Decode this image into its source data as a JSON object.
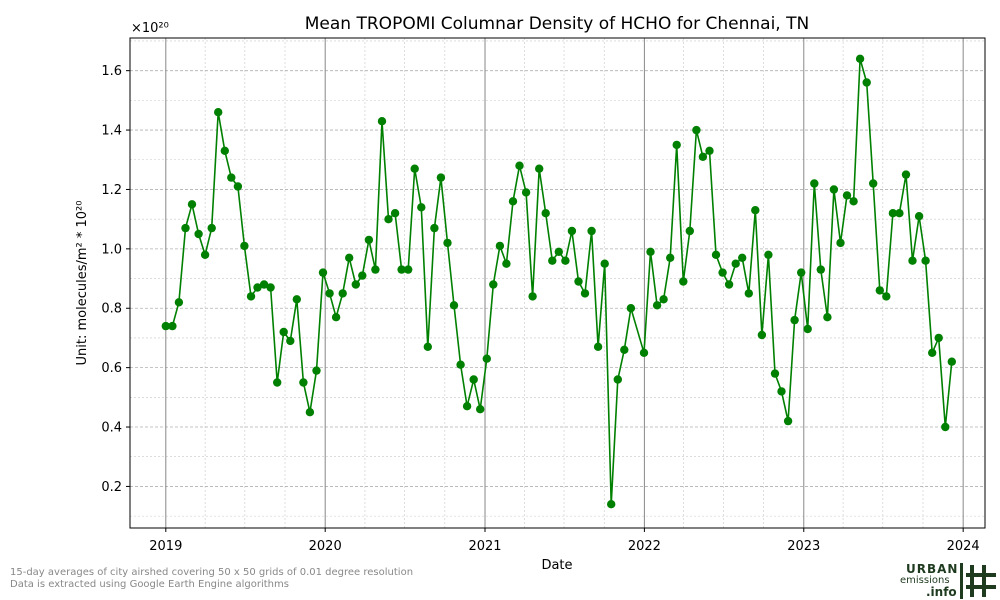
{
  "chart_data": {
    "type": "line",
    "title": "Mean TROPOMI Columnar Density of HCHO for Chennai, TN",
    "xlabel": "Date",
    "ylabel": "Unit: molecules/m² * 10²⁰",
    "y_scale_note": "×10²⁰",
    "xlim": [
      "2018-10-11",
      "2024-02-20"
    ],
    "ylim": [
      0.06,
      1.71
    ],
    "x_ticks": [
      "2019",
      "2020",
      "2021",
      "2022",
      "2023",
      "2024"
    ],
    "x_tick_dates": [
      "2019-01-01",
      "2020-01-01",
      "2021-01-01",
      "2022-01-01",
      "2023-01-01",
      "2024-01-01"
    ],
    "y_ticks": [
      "0.2",
      "0.4",
      "0.6",
      "0.8",
      "1.0",
      "1.2",
      "1.4",
      "1.6"
    ],
    "y_tick_values": [
      0.2,
      0.4,
      0.6,
      0.8,
      1.0,
      1.2,
      1.4,
      1.6
    ],
    "grid": true,
    "color": "#008000",
    "series": [
      {
        "points": [
          [
            "2019-01-01",
            0.74
          ],
          [
            "2019-01-16",
            0.74
          ],
          [
            "2019-01-31",
            0.82
          ],
          [
            "2019-02-15",
            1.07
          ],
          [
            "2019-03-02",
            1.15
          ],
          [
            "2019-03-17",
            1.05
          ],
          [
            "2019-04-01",
            0.98
          ],
          [
            "2019-04-16",
            1.07
          ],
          [
            "2019-05-01",
            1.46
          ],
          [
            "2019-05-16",
            1.33
          ],
          [
            "2019-05-31",
            1.24
          ],
          [
            "2019-06-15",
            1.21
          ],
          [
            "2019-06-30",
            1.01
          ],
          [
            "2019-07-15",
            0.84
          ],
          [
            "2019-07-30",
            0.87
          ],
          [
            "2019-08-14",
            0.88
          ],
          [
            "2019-08-29",
            0.87
          ],
          [
            "2019-09-13",
            0.55
          ],
          [
            "2019-09-28",
            0.72
          ],
          [
            "2019-10-13",
            0.69
          ],
          [
            "2019-10-28",
            0.83
          ],
          [
            "2019-11-12",
            0.55
          ],
          [
            "2019-11-27",
            0.45
          ],
          [
            "2019-12-12",
            0.59
          ],
          [
            "2019-12-27",
            0.92
          ],
          [
            "2020-01-11",
            0.85
          ],
          [
            "2020-01-26",
            0.77
          ],
          [
            "2020-02-10",
            0.85
          ],
          [
            "2020-02-25",
            0.97
          ],
          [
            "2020-03-11",
            0.88
          ],
          [
            "2020-03-26",
            0.91
          ],
          [
            "2020-04-10",
            1.03
          ],
          [
            "2020-04-25",
            0.93
          ],
          [
            "2020-05-10",
            1.43
          ],
          [
            "2020-05-25",
            1.1
          ],
          [
            "2020-06-09",
            1.12
          ],
          [
            "2020-06-24",
            0.93
          ],
          [
            "2020-07-09",
            0.93
          ],
          [
            "2020-07-24",
            1.27
          ],
          [
            "2020-08-08",
            1.14
          ],
          [
            "2020-08-23",
            0.67
          ],
          [
            "2020-09-07",
            1.07
          ],
          [
            "2020-09-22",
            1.24
          ],
          [
            "2020-10-07",
            1.02
          ],
          [
            "2020-10-22",
            0.81
          ],
          [
            "2020-11-06",
            0.61
          ],
          [
            "2020-11-21",
            0.47
          ],
          [
            "2020-12-06",
            0.56
          ],
          [
            "2020-12-21",
            0.46
          ],
          [
            "2021-01-05",
            0.63
          ],
          [
            "2021-01-20",
            0.88
          ],
          [
            "2021-02-04",
            1.01
          ],
          [
            "2021-02-19",
            0.95
          ],
          [
            "2021-03-06",
            1.16
          ],
          [
            "2021-03-21",
            1.28
          ],
          [
            "2021-04-05",
            1.19
          ],
          [
            "2021-04-20",
            0.84
          ],
          [
            "2021-05-05",
            1.27
          ],
          [
            "2021-05-20",
            1.12
          ],
          [
            "2021-06-04",
            0.96
          ],
          [
            "2021-06-19",
            0.99
          ],
          [
            "2021-07-04",
            0.96
          ],
          [
            "2021-07-19",
            1.06
          ],
          [
            "2021-08-03",
            0.89
          ],
          [
            "2021-08-18",
            0.85
          ],
          [
            "2021-09-02",
            1.06
          ],
          [
            "2021-09-17",
            0.67
          ],
          [
            "2021-10-02",
            0.95
          ],
          [
            "2021-10-17",
            0.14
          ],
          [
            "2021-11-01",
            0.56
          ],
          [
            "2021-11-16",
            0.66
          ],
          [
            "2021-12-01",
            0.8
          ],
          [
            "2021-12-31",
            0.65
          ],
          [
            "2022-01-15",
            0.99
          ],
          [
            "2022-01-30",
            0.81
          ],
          [
            "2022-02-14",
            0.83
          ],
          [
            "2022-03-01",
            0.97
          ],
          [
            "2022-03-16",
            1.35
          ],
          [
            "2022-03-31",
            0.89
          ],
          [
            "2022-04-15",
            1.06
          ],
          [
            "2022-04-30",
            1.4
          ],
          [
            "2022-05-15",
            1.31
          ],
          [
            "2022-05-30",
            1.33
          ],
          [
            "2022-06-14",
            0.98
          ],
          [
            "2022-06-29",
            0.92
          ],
          [
            "2022-07-14",
            0.88
          ],
          [
            "2022-07-29",
            0.95
          ],
          [
            "2022-08-13",
            0.97
          ],
          [
            "2022-08-28",
            0.85
          ],
          [
            "2022-09-12",
            1.13
          ],
          [
            "2022-09-27",
            0.71
          ],
          [
            "2022-10-12",
            0.98
          ],
          [
            "2022-10-27",
            0.58
          ],
          [
            "2022-11-11",
            0.52
          ],
          [
            "2022-11-26",
            0.42
          ],
          [
            "2022-12-11",
            0.76
          ],
          [
            "2022-12-26",
            0.92
          ],
          [
            "2023-01-10",
            0.73
          ],
          [
            "2023-01-25",
            1.22
          ],
          [
            "2023-02-09",
            0.93
          ],
          [
            "2023-02-24",
            0.77
          ],
          [
            "2023-03-11",
            1.2
          ],
          [
            "2023-03-26",
            1.02
          ],
          [
            "2023-04-10",
            1.18
          ],
          [
            "2023-04-25",
            1.16
          ],
          [
            "2023-05-10",
            1.64
          ],
          [
            "2023-05-25",
            1.56
          ],
          [
            "2023-06-09",
            1.22
          ],
          [
            "2023-06-24",
            0.86
          ],
          [
            "2023-07-09",
            0.84
          ],
          [
            "2023-07-24",
            1.12
          ],
          [
            "2023-08-08",
            1.12
          ],
          [
            "2023-08-23",
            1.25
          ],
          [
            "2023-09-07",
            0.96
          ],
          [
            "2023-09-22",
            1.11
          ],
          [
            "2023-10-07",
            0.96
          ],
          [
            "2023-10-22",
            0.65
          ],
          [
            "2023-11-06",
            0.7
          ],
          [
            "2023-11-21",
            0.4
          ],
          [
            "2023-12-06",
            0.62
          ]
        ]
      }
    ]
  },
  "footer": {
    "note_line1": "15-day averages of city airshed covering 50 x 50 grids of 0.01 degree resolution",
    "note_line2": "Data is extracted using Google Earth Engine algorithms"
  },
  "logo": {
    "line1": "URBAN",
    "line2": "emissions",
    "line3": ".info",
    "color": "#1f3b1f"
  }
}
